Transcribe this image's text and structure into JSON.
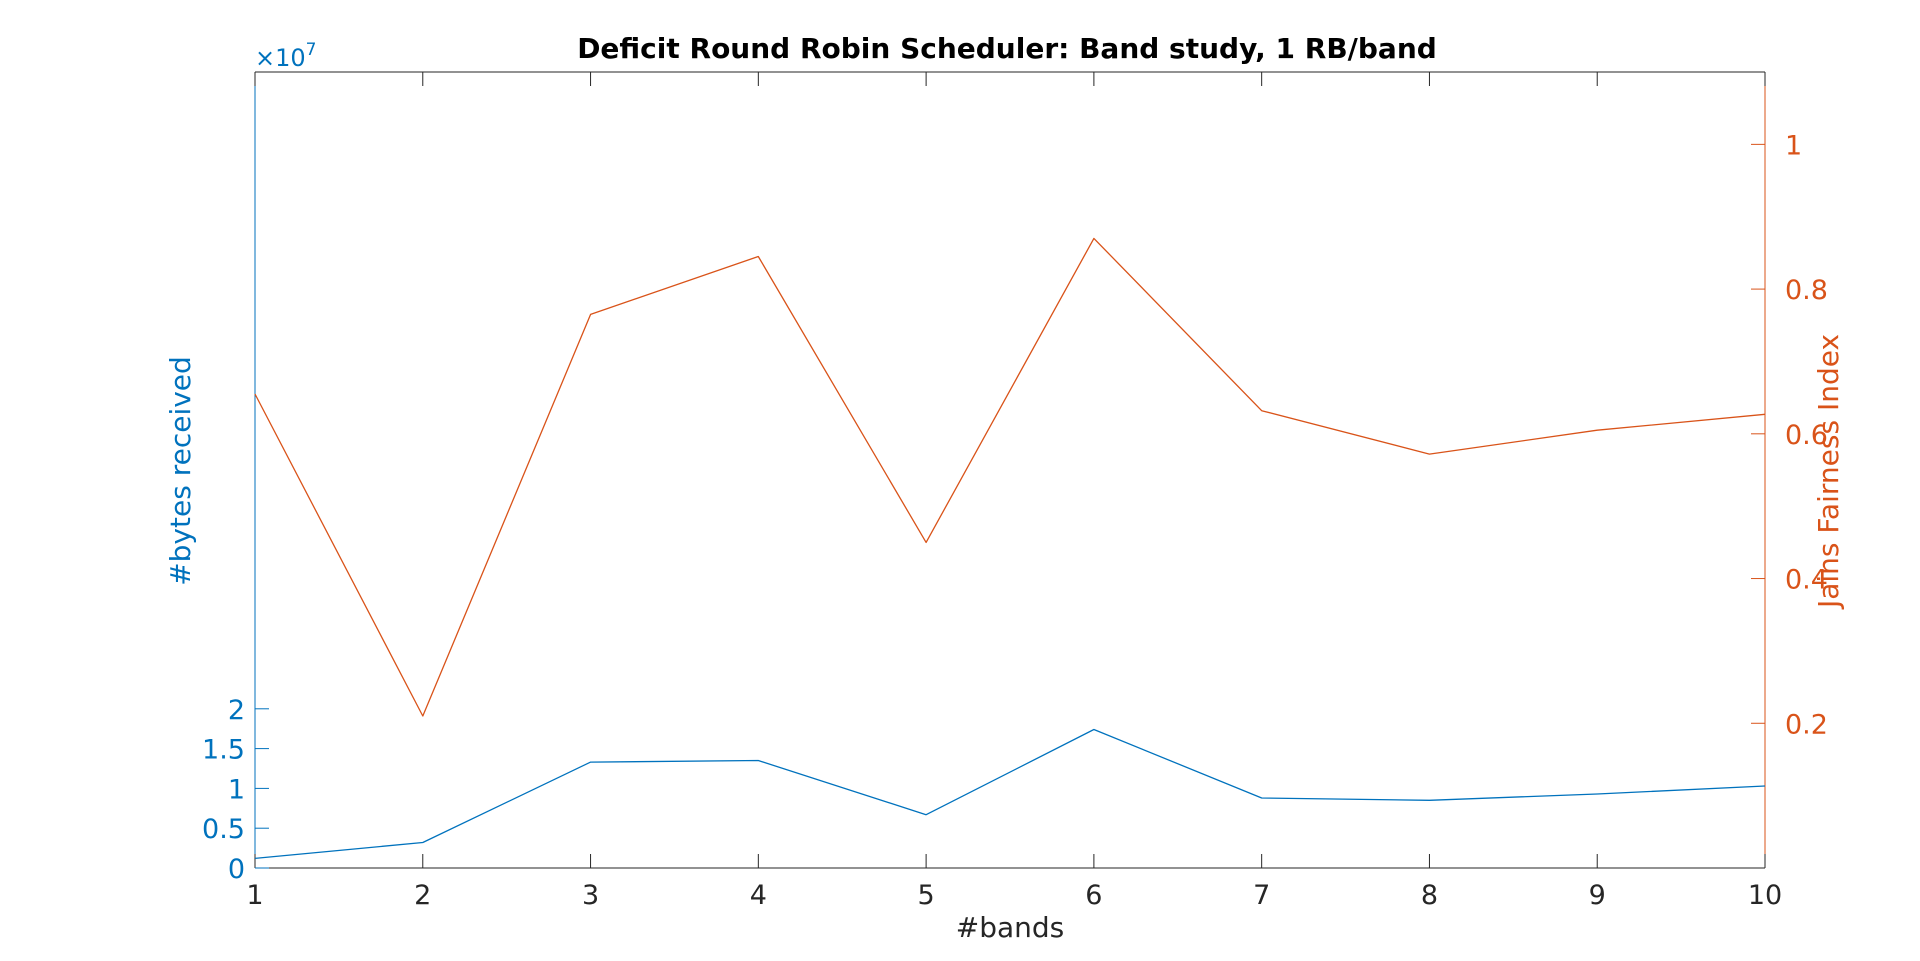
{
  "chart_data": {
    "type": "line",
    "title": "Deficit Round Robin Scheduler: Band study, 1 RB/band",
    "xlabel": "#bands",
    "x": [
      1,
      2,
      3,
      4,
      5,
      6,
      7,
      8,
      9,
      10
    ],
    "xlim": [
      1,
      10
    ],
    "xticks": [
      "1",
      "2",
      "3",
      "4",
      "5",
      "6",
      "7",
      "8",
      "9",
      "10"
    ],
    "left_axis": {
      "label": "#bytes received",
      "exponent_label": "×10",
      "exponent_power": "7",
      "color": "#0072BD",
      "ylim": [
        0,
        10
      ],
      "ticks": [
        0,
        0.5,
        1,
        1.5,
        2
      ],
      "tick_labels": [
        "0",
        "0.5",
        "1",
        "1.5",
        "2"
      ]
    },
    "right_axis": {
      "label": "Jains Fairness Index",
      "color": "#D95319",
      "ylim": [
        0,
        1.1
      ],
      "ticks": [
        0.2,
        0.4,
        0.6,
        0.8,
        1
      ],
      "tick_labels": [
        "0.2",
        "0.4",
        "0.6",
        "0.8",
        "1"
      ]
    },
    "series": [
      {
        "axis": "left",
        "color": "#0072BD",
        "values": [
          0.12,
          0.32,
          1.33,
          1.35,
          0.67,
          1.74,
          0.88,
          0.85,
          0.93,
          1.03
        ]
      },
      {
        "axis": "right",
        "color": "#D95319",
        "values": [
          0.655,
          0.21,
          0.765,
          0.845,
          0.45,
          0.87,
          0.632,
          0.572,
          0.605,
          0.627
        ]
      }
    ],
    "grid": false,
    "box": true
  }
}
